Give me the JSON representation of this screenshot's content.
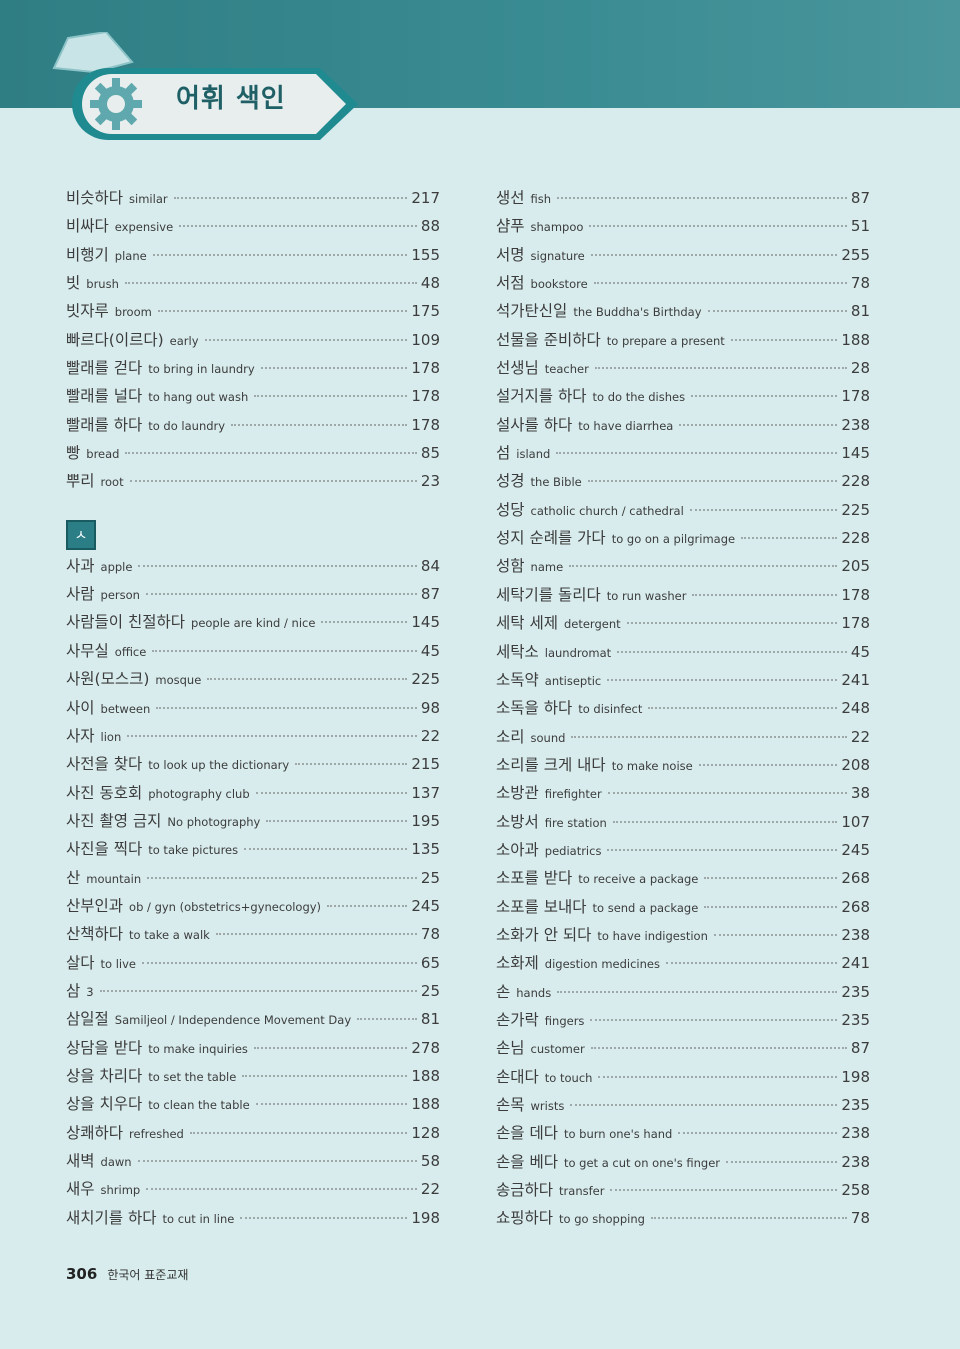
{
  "header": {
    "title": "어휘 색인"
  },
  "section_marker": "ㅅ",
  "left_top": [
    {
      "ko": "비슷하다",
      "en": "similar",
      "page": "217"
    },
    {
      "ko": "비싸다",
      "en": "expensive",
      "page": "88"
    },
    {
      "ko": "비행기",
      "en": "plane",
      "page": "155"
    },
    {
      "ko": "빗",
      "en": "brush",
      "page": "48"
    },
    {
      "ko": "빗자루",
      "en": "broom",
      "page": "175"
    },
    {
      "ko": "빠르다(이르다)",
      "en": "early",
      "page": "109"
    },
    {
      "ko": "빨래를 걷다",
      "en": "to bring in laundry",
      "page": "178"
    },
    {
      "ko": "빨래를 널다",
      "en": "to hang out wash",
      "page": "178"
    },
    {
      "ko": "빨래를 하다",
      "en": "to do laundry",
      "page": "178"
    },
    {
      "ko": "빵",
      "en": "bread",
      "page": "85"
    },
    {
      "ko": "뿌리",
      "en": "root",
      "page": "23"
    }
  ],
  "left_bottom": [
    {
      "ko": "사과",
      "en": "apple",
      "page": "84"
    },
    {
      "ko": "사람",
      "en": "person",
      "page": "87"
    },
    {
      "ko": "사람들이 친절하다",
      "en": "people are kind / nice",
      "page": "145"
    },
    {
      "ko": "사무실",
      "en": "office",
      "page": "45"
    },
    {
      "ko": "사원(모스크)",
      "en": "mosque",
      "page": "225"
    },
    {
      "ko": "사이",
      "en": "between",
      "page": "98"
    },
    {
      "ko": "사자",
      "en": "lion",
      "page": "22"
    },
    {
      "ko": "사전을 찾다",
      "en": "to look up the dictionary",
      "page": "215"
    },
    {
      "ko": "사진 동호회",
      "en": "photography club",
      "page": "137"
    },
    {
      "ko": "사진 촬영 금지",
      "en": "No photography",
      "page": "195"
    },
    {
      "ko": "사진을 찍다",
      "en": "to take pictures",
      "page": "135"
    },
    {
      "ko": "산",
      "en": "mountain",
      "page": "25"
    },
    {
      "ko": "산부인과",
      "en": "ob / gyn (obstetrics+gynecology)",
      "page": "245"
    },
    {
      "ko": "산책하다",
      "en": "to take a walk",
      "page": "78"
    },
    {
      "ko": "살다",
      "en": "to live",
      "page": "65"
    },
    {
      "ko": "삼",
      "en": "3",
      "page": "25"
    },
    {
      "ko": "삼일절",
      "en": "Samiljeol / Independence Movement Day",
      "page": "81"
    },
    {
      "ko": "상담을 받다",
      "en": "to make inquiries",
      "page": "278"
    },
    {
      "ko": "상을 차리다",
      "en": "to set the table",
      "page": "188"
    },
    {
      "ko": "상을 치우다",
      "en": "to clean the table",
      "page": "188"
    },
    {
      "ko": "상쾌하다",
      "en": "refreshed",
      "page": "128"
    },
    {
      "ko": "새벽",
      "en": "dawn",
      "page": "58"
    },
    {
      "ko": "새우",
      "en": "shrimp",
      "page": "22"
    },
    {
      "ko": "새치기를 하다",
      "en": "to cut in line",
      "page": "198"
    }
  ],
  "right": [
    {
      "ko": "생선",
      "en": "fish",
      "page": "87"
    },
    {
      "ko": "샴푸",
      "en": "shampoo",
      "page": "51"
    },
    {
      "ko": "서명",
      "en": "signature",
      "page": "255"
    },
    {
      "ko": "서점",
      "en": "bookstore",
      "page": "78"
    },
    {
      "ko": "석가탄신일",
      "en": "the Buddha's Birthday",
      "page": "81"
    },
    {
      "ko": "선물을 준비하다",
      "en": "to prepare a present",
      "page": "188"
    },
    {
      "ko": "선생님",
      "en": "teacher",
      "page": "28"
    },
    {
      "ko": "설거지를 하다",
      "en": "to do the dishes",
      "page": "178"
    },
    {
      "ko": "설사를 하다",
      "en": "to have diarrhea",
      "page": "238"
    },
    {
      "ko": "섬",
      "en": "island",
      "page": "145"
    },
    {
      "ko": "성경",
      "en": "the Bible",
      "page": "228"
    },
    {
      "ko": "성당",
      "en": "catholic church / cathedral",
      "page": "225"
    },
    {
      "ko": "성지 순례를 가다",
      "en": "to go on a pilgrimage",
      "page": "228"
    },
    {
      "ko": "성함",
      "en": "name",
      "page": "205"
    },
    {
      "ko": "세탁기를 돌리다",
      "en": "to run washer",
      "page": "178"
    },
    {
      "ko": "세탁 세제",
      "en": "detergent",
      "page": "178"
    },
    {
      "ko": "세탁소",
      "en": "laundromat",
      "page": "45"
    },
    {
      "ko": "소독약",
      "en": "antiseptic",
      "page": "241"
    },
    {
      "ko": "소독을 하다",
      "en": "to disinfect",
      "page": "248"
    },
    {
      "ko": "소리",
      "en": "sound",
      "page": "22"
    },
    {
      "ko": "소리를 크게 내다",
      "en": "to make noise",
      "page": "208"
    },
    {
      "ko": "소방관",
      "en": "firefighter",
      "page": "38"
    },
    {
      "ko": "소방서",
      "en": "fire station",
      "page": "107"
    },
    {
      "ko": "소아과",
      "en": "pediatrics",
      "page": "245"
    },
    {
      "ko": "소포를 받다",
      "en": "to receive a package",
      "page": "268"
    },
    {
      "ko": "소포를 보내다",
      "en": "to send a package",
      "page": "268"
    },
    {
      "ko": "소화가 안 되다",
      "en": "to have indigestion",
      "page": "238"
    },
    {
      "ko": "소화제",
      "en": "digestion medicines",
      "page": "241"
    },
    {
      "ko": "손",
      "en": "hands",
      "page": "235"
    },
    {
      "ko": "손가락",
      "en": "fingers",
      "page": "235"
    },
    {
      "ko": "손님",
      "en": "customer",
      "page": "87"
    },
    {
      "ko": "손대다",
      "en": "to touch",
      "page": "198"
    },
    {
      "ko": "손목",
      "en": "wrists",
      "page": "235"
    },
    {
      "ko": "손을 데다",
      "en": "to burn one's hand",
      "page": "238"
    },
    {
      "ko": "손을 베다",
      "en": "to get a cut on one's finger",
      "page": "238"
    },
    {
      "ko": "송금하다",
      "en": "transfer",
      "page": "258"
    },
    {
      "ko": "쇼핑하다",
      "en": "to go shopping",
      "page": "78"
    }
  ],
  "footer": {
    "page_number": "306",
    "book_title": "한국어 표준교재"
  },
  "colors": {
    "teal": "#2f7e84",
    "background": "#d8ecee"
  }
}
